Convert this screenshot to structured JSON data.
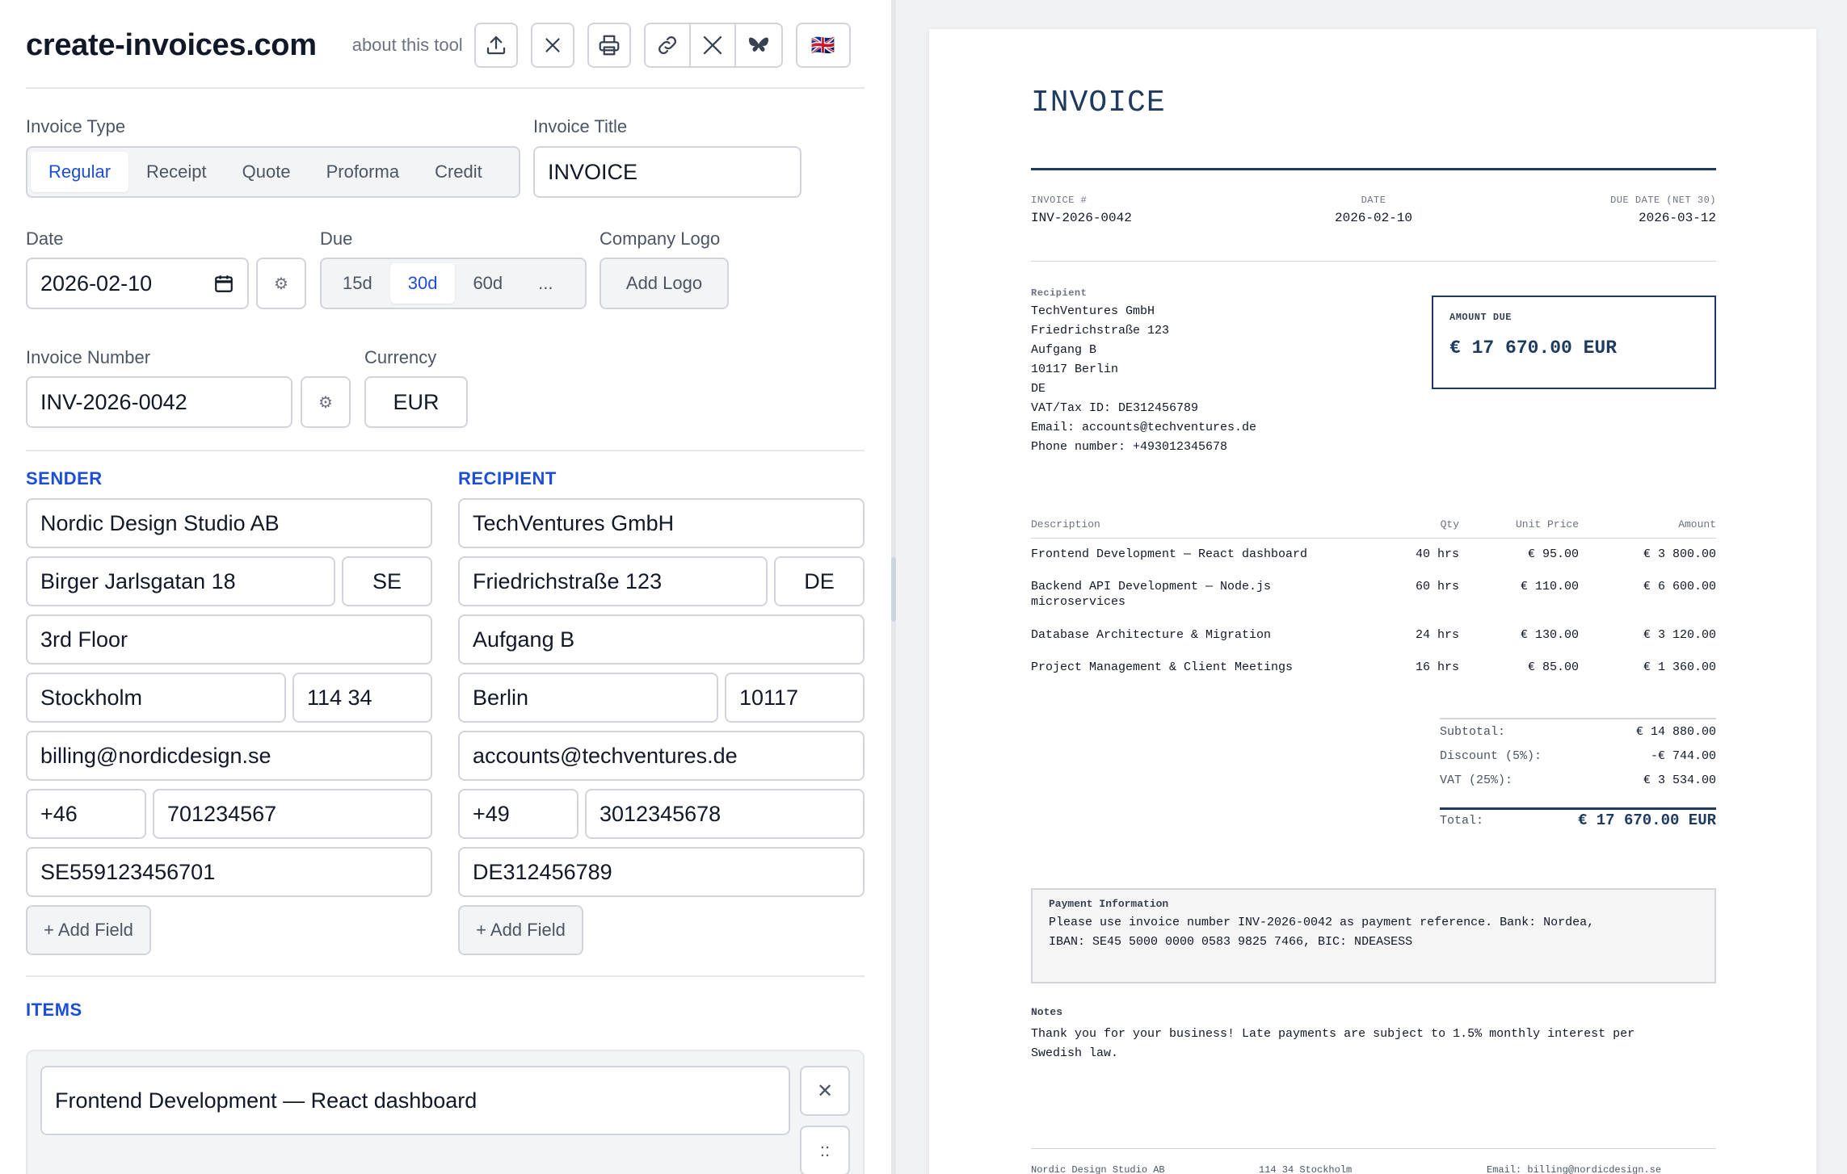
{
  "app": {
    "brand": "create-invoices.com",
    "about": "about this tool",
    "flag": "🇬🇧"
  },
  "form": {
    "invoice_type_label": "Invoice Type",
    "invoice_types": [
      "Regular",
      "Receipt",
      "Quote",
      "Proforma",
      "Credit"
    ],
    "invoice_type_selected": "Regular",
    "invoice_title_label": "Invoice Title",
    "invoice_title_value": "INVOICE",
    "date_label": "Date",
    "date_value": "2026-02-10",
    "due_label": "Due",
    "due_options": [
      "15d",
      "30d",
      "60d",
      "..."
    ],
    "due_selected": "30d",
    "logo_label": "Company Logo",
    "logo_button": "Add Logo",
    "number_label": "Invoice Number",
    "number_value": "INV-2026-0042",
    "currency_label": "Currency",
    "currency_value": "EUR",
    "gear": "⚙"
  },
  "sender": {
    "title": "SENDER",
    "name": "Nordic Design Studio AB",
    "street": "Birger Jarlsgatan 18",
    "country": "SE",
    "address2": "3rd Floor",
    "city": "Stockholm",
    "zip": "114 34",
    "email": "billing@nordicdesign.se",
    "phone_code": "+46",
    "phone": "701234567",
    "vat": "SE559123456701",
    "add_field": "+ Add Field"
  },
  "recipient": {
    "title": "RECIPIENT",
    "name": "TechVentures GmbH",
    "street": "Friedrichstraße 123",
    "country": "DE",
    "address2": "Aufgang B",
    "city": "Berlin",
    "zip": "10117",
    "email": "accounts@techventures.de",
    "phone_code": "+49",
    "phone": "3012345678",
    "vat": "DE312456789",
    "add_field": "+ Add Field"
  },
  "items_section": {
    "title": "ITEMS",
    "first_item": "Frontend Development — React dashboard",
    "remove": "✕",
    "drag": "::"
  },
  "preview": {
    "title": "INVOICE",
    "invoice_no_label": "INVOICE #",
    "invoice_no": "INV-2026-0042",
    "date_label": "DATE",
    "date": "2026-02-10",
    "due_label": "DUE DATE (NET 30)",
    "due": "2026-03-12",
    "recipient_label": "Recipient",
    "recipient_lines": [
      "TechVentures GmbH",
      "Friedrichstraße 123",
      "Aufgang B",
      "10117 Berlin",
      "DE",
      "VAT/Tax ID: DE312456789",
      "Email: accounts@techventures.de",
      "Phone number: +493012345678"
    ],
    "amount_due_label": "AMOUNT DUE",
    "amount_due": "€ 17 670.00 EUR",
    "table_headers": {
      "description": "Description",
      "qty": "Qty",
      "unit": "Unit Price",
      "amount": "Amount"
    },
    "rows": [
      {
        "desc": "Frontend Development — React dashboard",
        "desc2": "",
        "qty": "40 hrs",
        "unit": "€ 95.00",
        "amount": "€ 3 800.00"
      },
      {
        "desc": "Backend API Development — Node.js",
        "desc2": "microservices",
        "qty": "60 hrs",
        "unit": "€ 110.00",
        "amount": "€ 6 600.00"
      },
      {
        "desc": "Database Architecture & Migration",
        "desc2": "",
        "qty": "24 hrs",
        "unit": "€ 130.00",
        "amount": "€ 3 120.00"
      },
      {
        "desc": "Project Management & Client Meetings",
        "desc2": "",
        "qty": "16 hrs",
        "unit": "€ 85.00",
        "amount": "€ 1 360.00"
      }
    ],
    "subtotal_label": "Subtotal:",
    "subtotal": "€ 14 880.00",
    "discount_label": "Discount (5%):",
    "discount": "-€ 744.00",
    "vat_label": "VAT (25%):",
    "vat": "€ 3 534.00",
    "total_label": "Total:",
    "total": "€ 17 670.00 EUR",
    "payment_title": "Payment Information",
    "payment_line1": "Please use invoice number INV-2026-0042 as payment reference. Bank: Nordea,",
    "payment_line2": "IBAN: SE45 5000 0000 0583 9825 7466, BIC: NDEASESS",
    "notes_title": "Notes",
    "notes_line1": "Thank you for your business! Late payments are subject to 1.5% monthly interest per",
    "notes_line2": "Swedish law.",
    "footer_left": "Nordic Design Studio AB",
    "footer_mid": "114 34 Stockholm",
    "footer_right": "Email: billing@nordicdesign.se"
  }
}
